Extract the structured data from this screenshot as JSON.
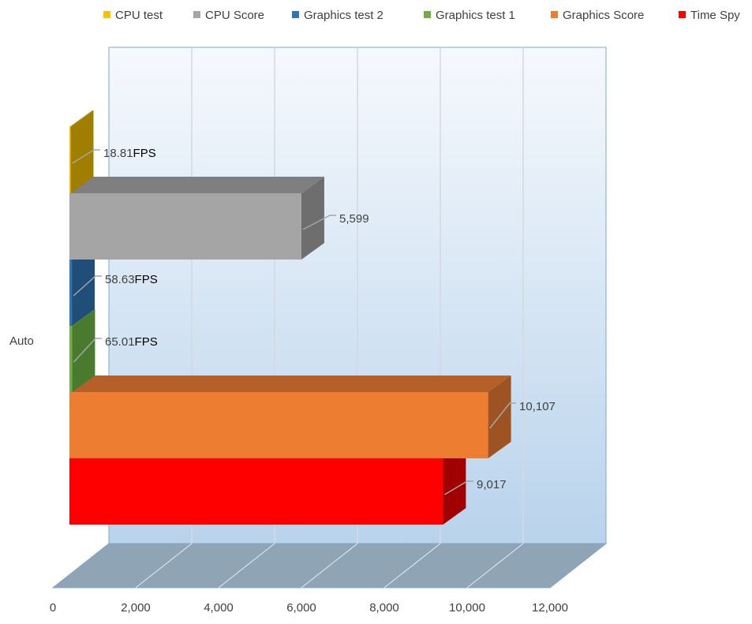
{
  "chart_data": {
    "type": "bar",
    "orientation": "horizontal-3d",
    "categories": [
      "Auto"
    ],
    "series": [
      {
        "name": "Time Spy",
        "values": [
          9017
        ],
        "label": "9,017",
        "unit": "",
        "color": "#ff0000",
        "side": "#a00000",
        "top": "#c00000"
      },
      {
        "name": "Graphics Score",
        "values": [
          10107
        ],
        "label": "10,107",
        "unit": "",
        "color": "#ed7d31",
        "side": "#9e5422",
        "top": "#b5602a"
      },
      {
        "name": "Graphics test 1",
        "values": [
          65.01
        ],
        "label": "65.01",
        "unit": "FPS",
        "color": "#70ad47",
        "side": "#4a7a2e",
        "top": "#5e9a3a"
      },
      {
        "name": "Graphics test 2",
        "values": [
          58.63
        ],
        "label": "58.63",
        "unit": "FPS",
        "color": "#2e75b6",
        "side": "#1f4e79",
        "top": "#255f94"
      },
      {
        "name": "CPU Score",
        "values": [
          5599
        ],
        "label": "5,599",
        "unit": "",
        "color": "#a5a5a5",
        "side": "#6e6e6e",
        "top": "#7f7f7f"
      },
      {
        "name": "CPU test",
        "values": [
          18.81
        ],
        "label": "18.81",
        "unit": "FPS",
        "color": "#ffc000",
        "side": "#a07f00",
        "top": "#b08a00"
      }
    ],
    "legend": [
      "CPU test",
      "CPU Score",
      "Graphics test 2",
      "Graphics test 1",
      "Graphics Score",
      "Time Spy"
    ],
    "legend_position": "top",
    "xticks": [
      "0",
      "2,000",
      "4,000",
      "6,000",
      "8,000",
      "10,000",
      "12,000"
    ],
    "xlim": [
      0,
      12000
    ],
    "grid": true,
    "title": "",
    "xlabel": "",
    "ylabel": ""
  }
}
